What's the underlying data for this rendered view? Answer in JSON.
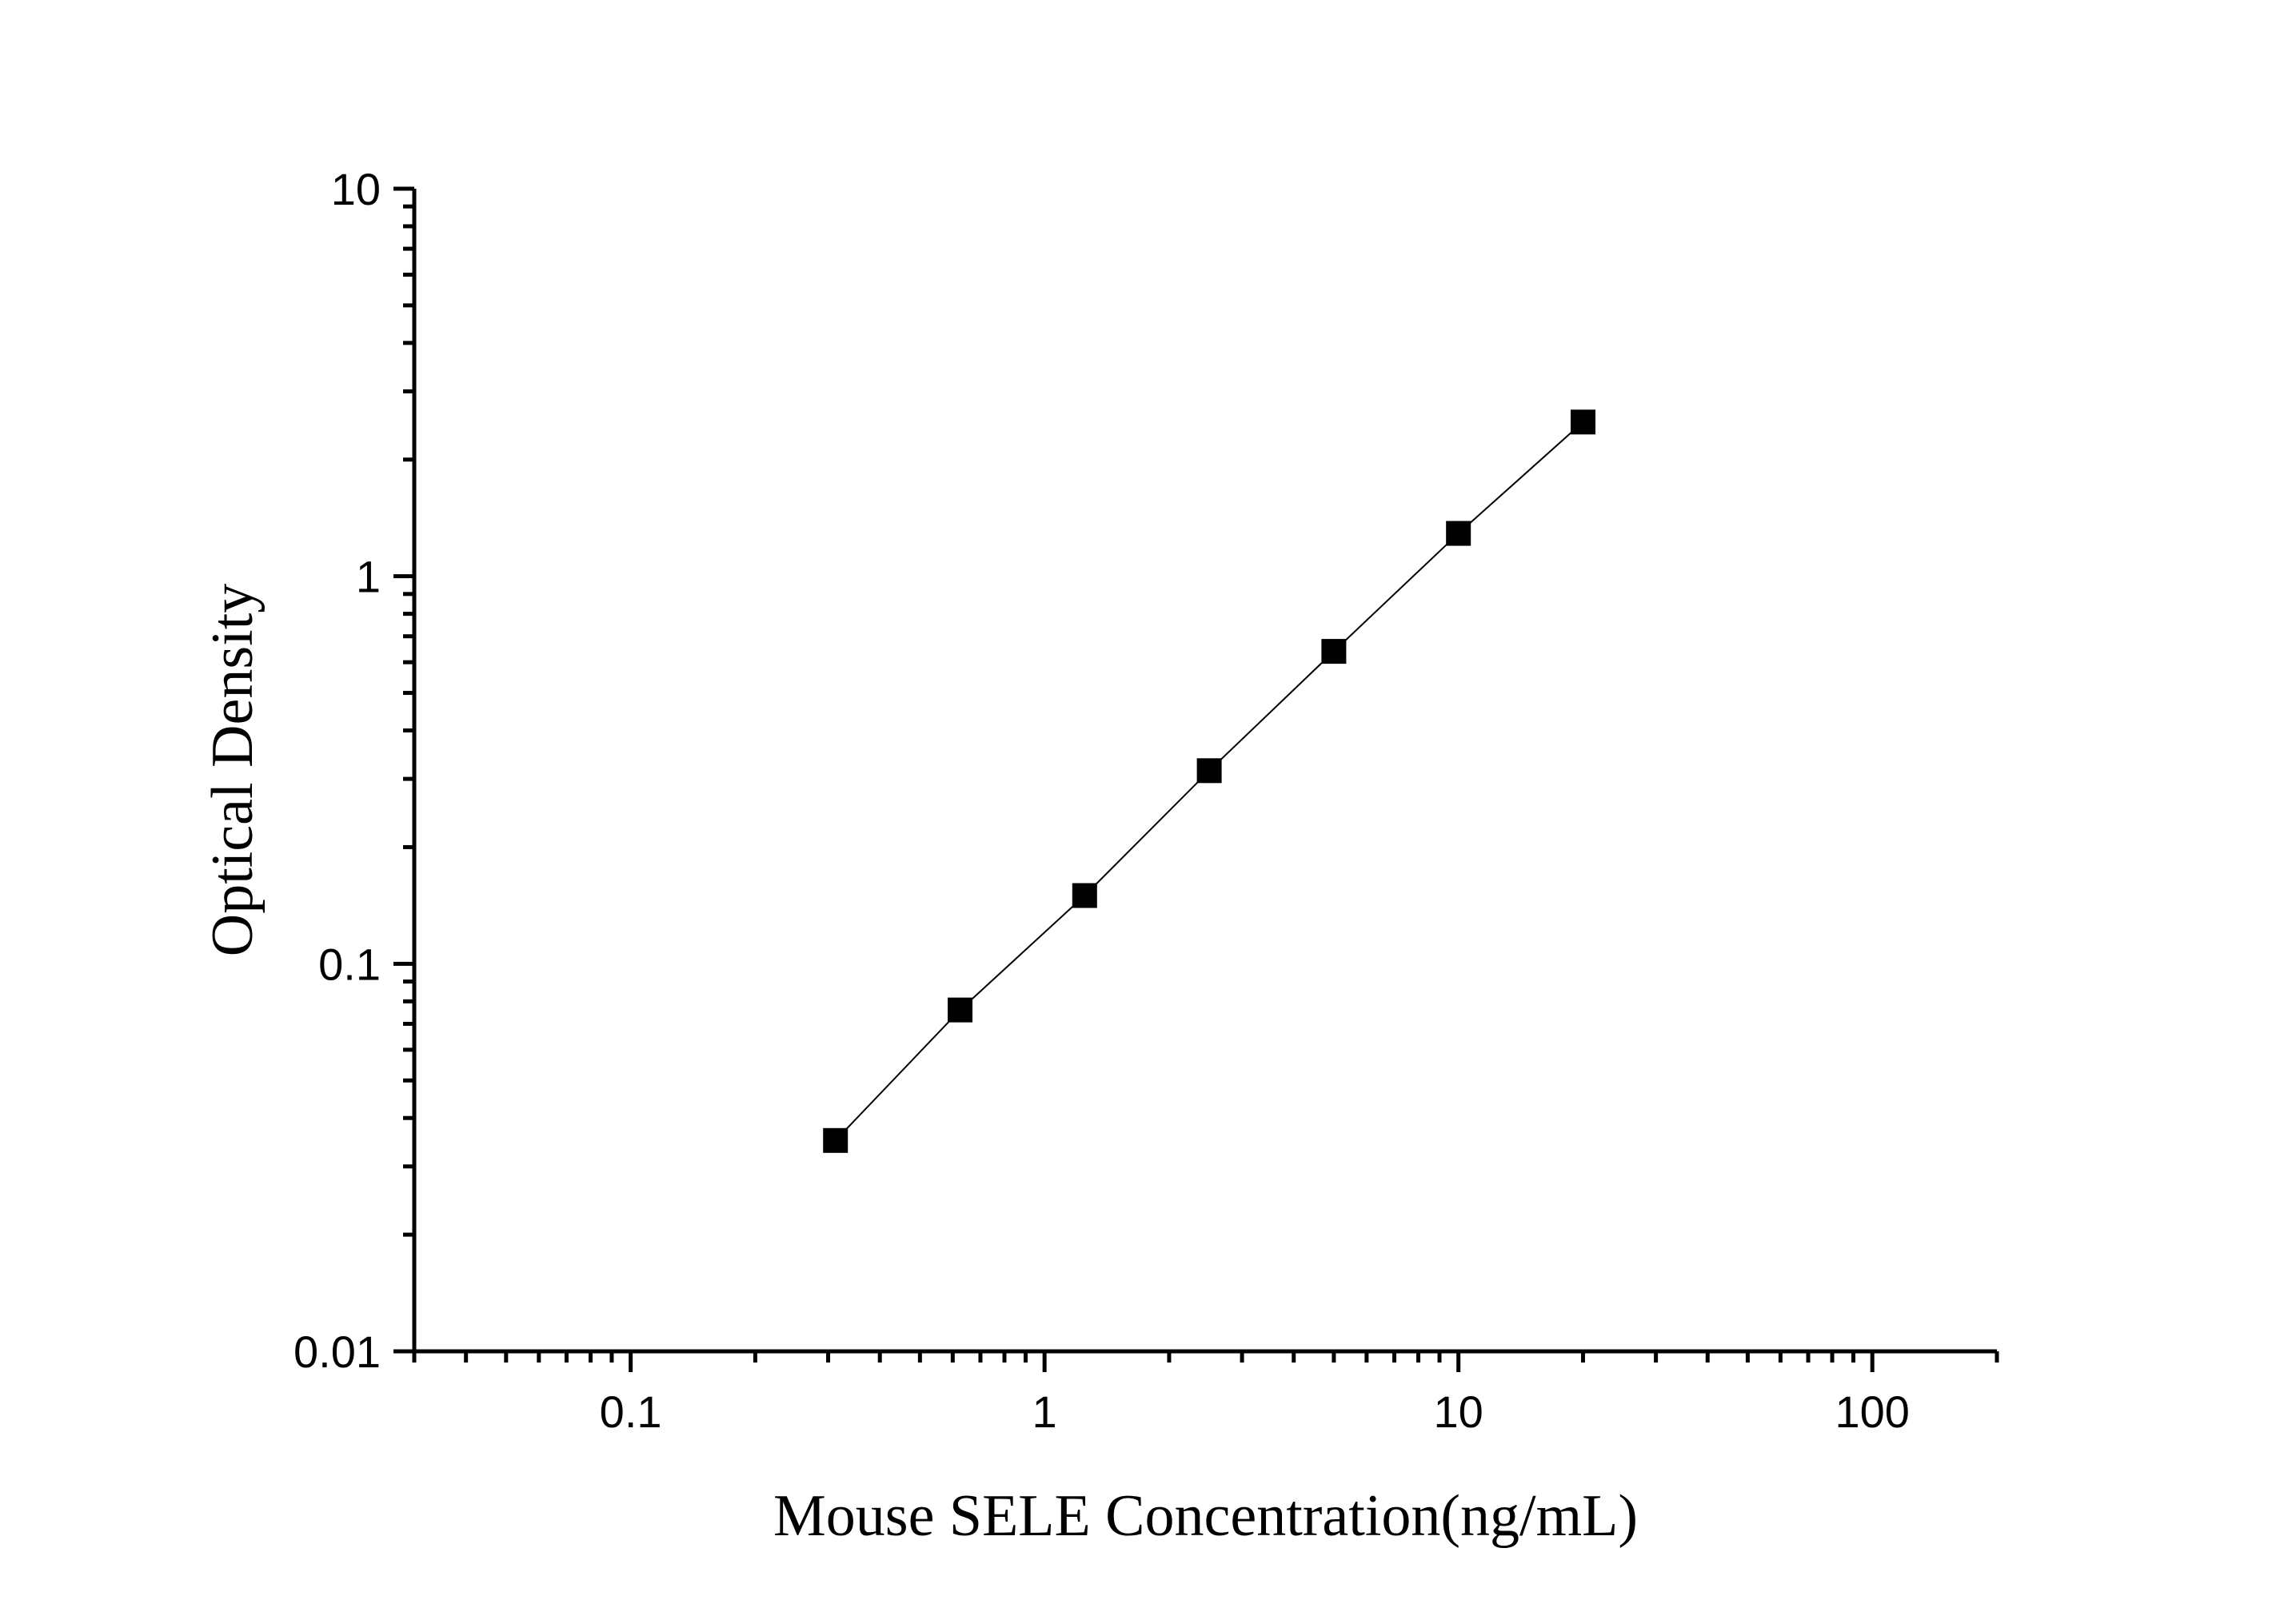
{
  "chart_data": {
    "type": "scatter",
    "title": "",
    "xlabel": "Mouse SELE Concentration(ng/mL)",
    "ylabel": "Optical Density",
    "xscale": "log",
    "yscale": "log",
    "xlim": [
      0.03,
      200
    ],
    "ylim": [
      0.01,
      10
    ],
    "x_tick_values": [
      0.1,
      1,
      10,
      100
    ],
    "x_tick_labels": [
      "0.1",
      "1",
      "10",
      "100"
    ],
    "y_tick_values": [
      0.01,
      0.1,
      1,
      10
    ],
    "y_tick_labels": [
      "0.01",
      "0.1",
      "1",
      "10"
    ],
    "grid": false,
    "legend": "none",
    "marker": "square",
    "color": "#000000",
    "series": [
      {
        "x": [
          0.3125,
          0.625,
          1.25,
          2.5,
          5,
          10,
          20
        ],
        "y": [
          0.035,
          0.076,
          0.15,
          0.315,
          0.64,
          1.29,
          2.5
        ],
        "line": true
      }
    ]
  }
}
